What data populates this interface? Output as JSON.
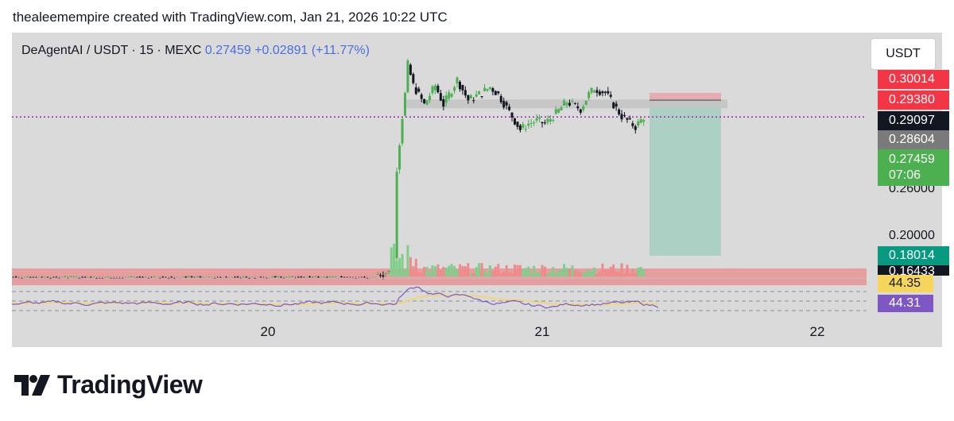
{
  "caption": "thealeemempire created with TradingView.com, Jan 21, 2026 10:22 UTC",
  "brand": {
    "name": "TradingView",
    "logo_icon": "tradingview-logo-icon"
  },
  "symbol": {
    "name": "DeAgentAI / USDT · 15 · MEXC",
    "price": "0.27459",
    "change": "+0.02891 (+11.77%)"
  },
  "currency_button": "USDT",
  "price_labels": {
    "p1": "0.30014",
    "p2": "0.29380",
    "p3": "0.29097",
    "p4": "0.28604",
    "current": "0.27459",
    "countdown": "07:06",
    "hidden_tick": "0.26000",
    "p5": "0.20000",
    "p6": "0.18014",
    "p7": "0.16433"
  },
  "rsi_labels": {
    "signal": "44.35",
    "rsi": "44.31"
  },
  "x_ticks": [
    "20",
    "21",
    "22"
  ],
  "colors": {
    "up": "#4caf50",
    "down": "#131722",
    "red_tag": "#f23645",
    "black_tag": "#131722",
    "gray_tag": "#7a7a7a",
    "green_tag": "#4caf50",
    "teal_tag": "#089981",
    "rsi_line": "#7e57c2",
    "rsi_signal": "#f6d55c",
    "current_line": "#9c27b0",
    "panel": "#dadada"
  },
  "chart_data": {
    "type": "candlestick",
    "symbol": "DeAgentAI / USDT",
    "interval": "15",
    "exchange": "MEXC",
    "x_ticks": [
      "20",
      "21",
      "22"
    ],
    "y_ticks": [
      0.30014,
      0.2938,
      0.29097,
      0.28604,
      0.27459,
      0.2,
      0.18014,
      0.16433
    ],
    "ylim": [
      0.155,
      0.315
    ],
    "current_price": 0.27459,
    "price_change": "+0.02891 (+11.77%)",
    "price_path": [
      {
        "t": 20.4,
        "p": 0.1675
      },
      {
        "t": 20.45,
        "p": 0.169
      },
      {
        "t": 20.46,
        "p": 0.172
      },
      {
        "t": 20.47,
        "p": 0.18
      },
      {
        "t": 20.48,
        "p": 0.24
      },
      {
        "t": 20.5,
        "p": 0.275
      },
      {
        "t": 20.51,
        "p": 0.29
      },
      {
        "t": 20.52,
        "p": 0.31
      },
      {
        "t": 20.54,
        "p": 0.296
      },
      {
        "t": 20.58,
        "p": 0.283
      },
      {
        "t": 20.62,
        "p": 0.296
      },
      {
        "t": 20.65,
        "p": 0.283
      },
      {
        "t": 20.7,
        "p": 0.3
      },
      {
        "t": 20.74,
        "p": 0.286
      },
      {
        "t": 20.78,
        "p": 0.29
      },
      {
        "t": 20.82,
        "p": 0.295
      },
      {
        "t": 20.85,
        "p": 0.29
      },
      {
        "t": 20.9,
        "p": 0.275
      },
      {
        "t": 20.93,
        "p": 0.266
      },
      {
        "t": 20.96,
        "p": 0.27
      },
      {
        "t": 20.99,
        "p": 0.272
      },
      {
        "t": 21.02,
        "p": 0.27
      },
      {
        "t": 21.06,
        "p": 0.277
      },
      {
        "t": 21.1,
        "p": 0.285
      },
      {
        "t": 21.15,
        "p": 0.28
      },
      {
        "t": 21.18,
        "p": 0.29
      },
      {
        "t": 21.2,
        "p": 0.294
      },
      {
        "t": 21.24,
        "p": 0.291
      },
      {
        "t": 21.3,
        "p": 0.275
      },
      {
        "t": 21.35,
        "p": 0.268
      },
      {
        "t": 21.38,
        "p": 0.2746
      }
    ],
    "volume_profile_zone": [
      0.1601,
      0.1715
    ],
    "resistance_zone": [
      0.2805,
      0.2865
    ],
    "trade_box": {
      "entry": 0.28604,
      "stop": 0.29097,
      "target": 0.18014,
      "entry_note": "short position"
    },
    "rsi": {
      "value": 44.31,
      "signal": 44.35
    }
  }
}
